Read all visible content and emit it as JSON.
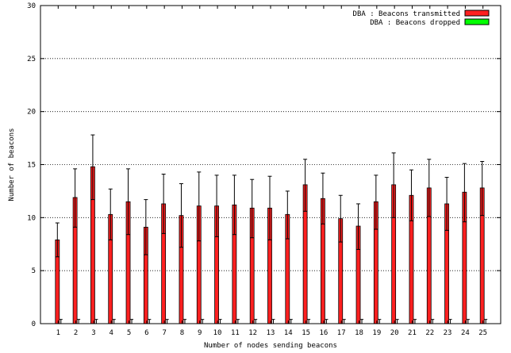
{
  "chart_data": {
    "type": "bar",
    "xlabel": "Number of nodes sending beacons",
    "ylabel": "Number of beacons",
    "ylim": [
      0,
      30
    ],
    "yticks": [
      0,
      5,
      10,
      15,
      20,
      25,
      30
    ],
    "grid": "horizontal dotted",
    "legend_position": "top-right",
    "categories": [
      "1",
      "2",
      "3",
      "4",
      "5",
      "6",
      "7",
      "8",
      "9",
      "10",
      "11",
      "12",
      "13",
      "14",
      "15",
      "16",
      "17",
      "18",
      "19",
      "20",
      "21",
      "22",
      "23",
      "24",
      "25"
    ],
    "series": [
      {
        "name": "DBA : Beacons transmitted",
        "color": "#ff2020",
        "values": [
          7.9,
          11.9,
          14.8,
          10.3,
          11.5,
          9.1,
          11.3,
          10.2,
          11.1,
          11.1,
          11.2,
          10.9,
          10.9,
          10.3,
          13.1,
          11.8,
          9.9,
          9.2,
          11.5,
          13.1,
          12.1,
          12.8,
          11.3,
          12.4,
          12.8
        ],
        "error_upper": [
          9.5,
          14.6,
          17.8,
          12.7,
          14.6,
          11.7,
          14.1,
          13.2,
          14.3,
          14.0,
          14.0,
          13.6,
          13.9,
          12.5,
          15.5,
          14.2,
          12.1,
          11.3,
          14.0,
          16.1,
          14.5,
          15.5,
          13.8,
          15.1,
          15.3
        ],
        "error_lower": [
          6.3,
          9.1,
          11.7,
          7.9,
          8.4,
          6.5,
          8.5,
          7.2,
          7.8,
          8.2,
          8.4,
          8.1,
          7.9,
          8.0,
          10.6,
          9.4,
          7.7,
          7.0,
          8.9,
          10.0,
          9.7,
          10.1,
          8.8,
          9.6,
          10.2
        ]
      },
      {
        "name": "DBA : Beacons dropped",
        "color": "#00ff00",
        "values": [
          0,
          0,
          0,
          0,
          0,
          0,
          0,
          0,
          0,
          0,
          0,
          0,
          0,
          0,
          0,
          0,
          0,
          0,
          0,
          0,
          0,
          0,
          0,
          0,
          0
        ],
        "error_upper": [
          0.4,
          0.4,
          0.4,
          0.4,
          0.4,
          0.4,
          0.4,
          0.4,
          0.4,
          0.4,
          0.4,
          0.4,
          0.4,
          0.4,
          0.4,
          0.4,
          0.4,
          0.4,
          0.4,
          0.4,
          0.4,
          0.4,
          0.4,
          0.4,
          0.4
        ]
      }
    ]
  }
}
